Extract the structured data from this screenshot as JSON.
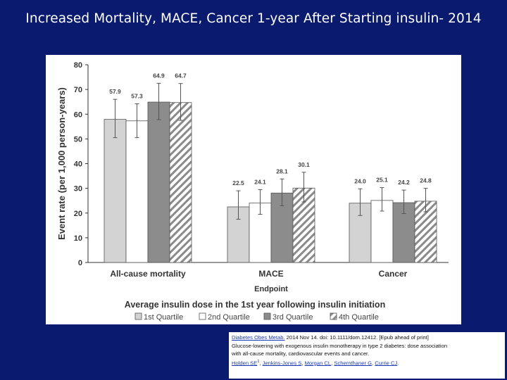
{
  "slide": {
    "title": "Increased Mortality, MACE, Cancer 1-year After Starting insulin- 2014"
  },
  "chart_data": {
    "type": "bar",
    "title": "Average insulin dose in the 1st year following insulin initiation",
    "xlabel": "Endpoint",
    "ylabel": "Event rate (per 1,000 person-years)",
    "ylim": [
      0,
      80
    ],
    "yticks": [
      "0",
      "10",
      "20",
      "30",
      "40",
      "50",
      "60",
      "70",
      "80"
    ],
    "grid": false,
    "legend_position": "bottom",
    "categories": [
      "All-cause mortality",
      "MACE",
      "Cancer"
    ],
    "series": [
      {
        "name": "1st Quartile",
        "fill": "#d3d3d3",
        "pattern": "solid",
        "values": [
          57.9,
          22.5,
          24.0
        ],
        "labels": [
          "57.9",
          "22.5",
          "24.0"
        ],
        "ci_low": [
          50.5,
          17.5,
          19.0
        ],
        "ci_high": [
          66.0,
          29.0,
          29.8
        ]
      },
      {
        "name": "2nd Quartile",
        "fill": "#ffffff",
        "pattern": "solid",
        "values": [
          57.3,
          24.1,
          25.1
        ],
        "labels": [
          "57.3",
          "24.1",
          "25.1"
        ],
        "ci_low": [
          50.5,
          19.5,
          20.8
        ],
        "ci_high": [
          64.2,
          29.5,
          30.3
        ]
      },
      {
        "name": "3rd Quartile",
        "fill": "#8c8c8c",
        "pattern": "solid",
        "values": [
          64.9,
          28.1,
          24.2
        ],
        "labels": [
          "64.9",
          "28.1",
          "24.2"
        ],
        "ci_low": [
          57.8,
          23.0,
          19.8
        ],
        "ci_high": [
          72.5,
          33.8,
          29.3
        ]
      },
      {
        "name": "4th Quartile",
        "fill": "#ffffff",
        "pattern": "diagonal-hatch",
        "values": [
          64.7,
          30.1,
          24.8
        ],
        "labels": [
          "64.7",
          "30.1",
          "24.8"
        ],
        "ci_low": [
          57.5,
          24.5,
          20.5
        ],
        "ci_high": [
          72.4,
          36.5,
          30.0
        ]
      }
    ]
  },
  "citation": {
    "journal_link": "Diabetes Obes Metab.",
    "ref_rest": " 2014 Nov 14. doi: 10.1111/dom.12412. [Epub ahead of print]",
    "article_title_1": "Glucose-lowering with exogenous insulin monotherapy in type 2 diabetes: dose association",
    "article_title_2": " with all-cause mortality, cardiovascular events and cancer.",
    "authors": [
      {
        "name": "Holden SE",
        "suffix": "1"
      },
      {
        "name": "Jenkins-Jones S"
      },
      {
        "name": "Morgan CL"
      },
      {
        "name": "Schernthaner G"
      },
      {
        "name": "Currie CJ"
      }
    ],
    "sep": ", ",
    "end": "."
  }
}
